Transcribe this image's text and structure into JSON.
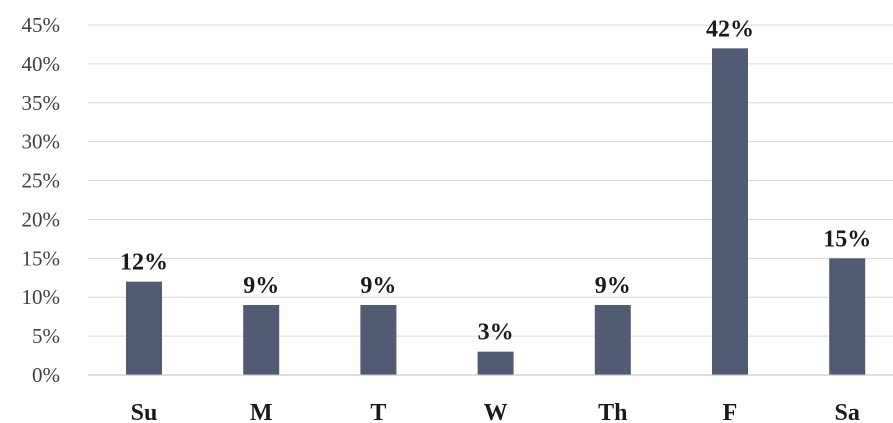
{
  "chart_data": {
    "type": "bar",
    "title": "",
    "xlabel": "",
    "ylabel": "",
    "categories": [
      "Su",
      "M",
      "T",
      "W",
      "Th",
      "F",
      "Sa"
    ],
    "values": [
      12,
      9,
      9,
      3,
      9,
      42,
      15
    ],
    "value_labels": [
      "12%",
      "9%",
      "9%",
      "3%",
      "9%",
      "42%",
      "15%"
    ],
    "ylim": [
      0,
      45
    ],
    "yticks": [
      0,
      5,
      10,
      15,
      20,
      25,
      30,
      35,
      40,
      45
    ],
    "ytick_labels": [
      "0%",
      "5%",
      "10%",
      "15%",
      "20%",
      "25%",
      "30%",
      "35%",
      "40%",
      "45%"
    ],
    "grid": true,
    "legend": "none",
    "bar_color": "#515b73",
    "grid_color": "#d9d9d9"
  }
}
